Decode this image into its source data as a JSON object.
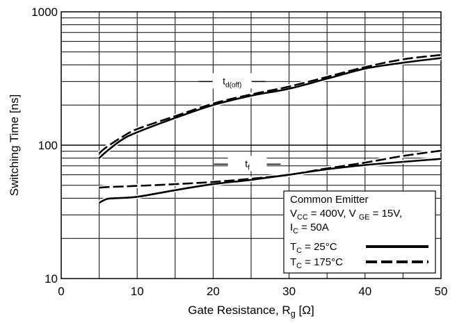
{
  "chart_data": {
    "type": "line",
    "title": "",
    "xlabel": "Gate Resistance, R",
    "xlabel_sub": "g",
    "xlabel_unit": "[Ω]",
    "ylabel": "Switching Time [ns]",
    "xlim": [
      0,
      50
    ],
    "ylim": [
      10,
      1000
    ],
    "yscale": "log",
    "grid": true,
    "x_ticks": [
      0,
      10,
      20,
      30,
      40,
      50
    ],
    "x_tick_labels": [
      "0",
      "10",
      "20",
      "30",
      "40",
      "50"
    ],
    "y_ticks": [
      10,
      100,
      1000
    ],
    "y_tick_labels": [
      "10",
      "100",
      "1000"
    ],
    "curve_labels": [
      {
        "main": "t",
        "sub": "d(off)"
      },
      {
        "main": "t",
        "sub": "f"
      }
    ],
    "legend": {
      "position": "bottom-right",
      "lines": [
        {
          "parts": [
            {
              "t": "Common Emitter"
            }
          ]
        },
        {
          "parts": [
            {
              "t": "V"
            },
            {
              "t": "CC",
              "sub": true
            },
            {
              "t": " = 400V, V "
            },
            {
              "t": "GE",
              "sub": true
            },
            {
              "t": " = 15V,"
            }
          ]
        },
        {
          "parts": [
            {
              "t": "I"
            },
            {
              "t": "C",
              "sub": true
            },
            {
              "t": " = 50A"
            }
          ]
        }
      ],
      "entries": [
        {
          "parts": [
            {
              "t": "T"
            },
            {
              "t": "C",
              "sub": true
            },
            {
              "t": " = 25°C"
            }
          ],
          "style": "solid"
        },
        {
          "parts": [
            {
              "t": "T"
            },
            {
              "t": "C",
              "sub": true
            },
            {
              "t": " = 175°C"
            }
          ],
          "style": "dashed"
        }
      ]
    },
    "series": [
      {
        "group": "td(off)",
        "style": "solid",
        "x": [
          5,
          6,
          8,
          10,
          15,
          20,
          25,
          30,
          35,
          40,
          45,
          50
        ],
        "y": [
          80,
          90,
          110,
          125,
          160,
          200,
          235,
          265,
          315,
          375,
          415,
          450
        ]
      },
      {
        "group": "td(off)",
        "style": "dashed",
        "x": [
          5,
          6,
          8,
          10,
          15,
          20,
          25,
          30,
          35,
          40,
          45,
          50
        ],
        "y": [
          87,
          97,
          115,
          132,
          165,
          205,
          240,
          275,
          325,
          385,
          440,
          475
        ]
      },
      {
        "group": "tf",
        "style": "solid",
        "x": [
          5,
          6,
          7,
          10,
          15,
          20,
          25,
          30,
          35,
          40,
          45,
          50
        ],
        "y": [
          37,
          39.5,
          40,
          41,
          46,
          51,
          55,
          60,
          66,
          71,
          75,
          79
        ]
      },
      {
        "group": "tf",
        "style": "dashed",
        "x": [
          5,
          6,
          8,
          10,
          15,
          20,
          25,
          30,
          35,
          40,
          45,
          50
        ],
        "y": [
          48,
          48.5,
          49,
          49.5,
          51,
          53,
          56,
          60,
          67,
          74,
          83,
          91
        ]
      }
    ]
  }
}
